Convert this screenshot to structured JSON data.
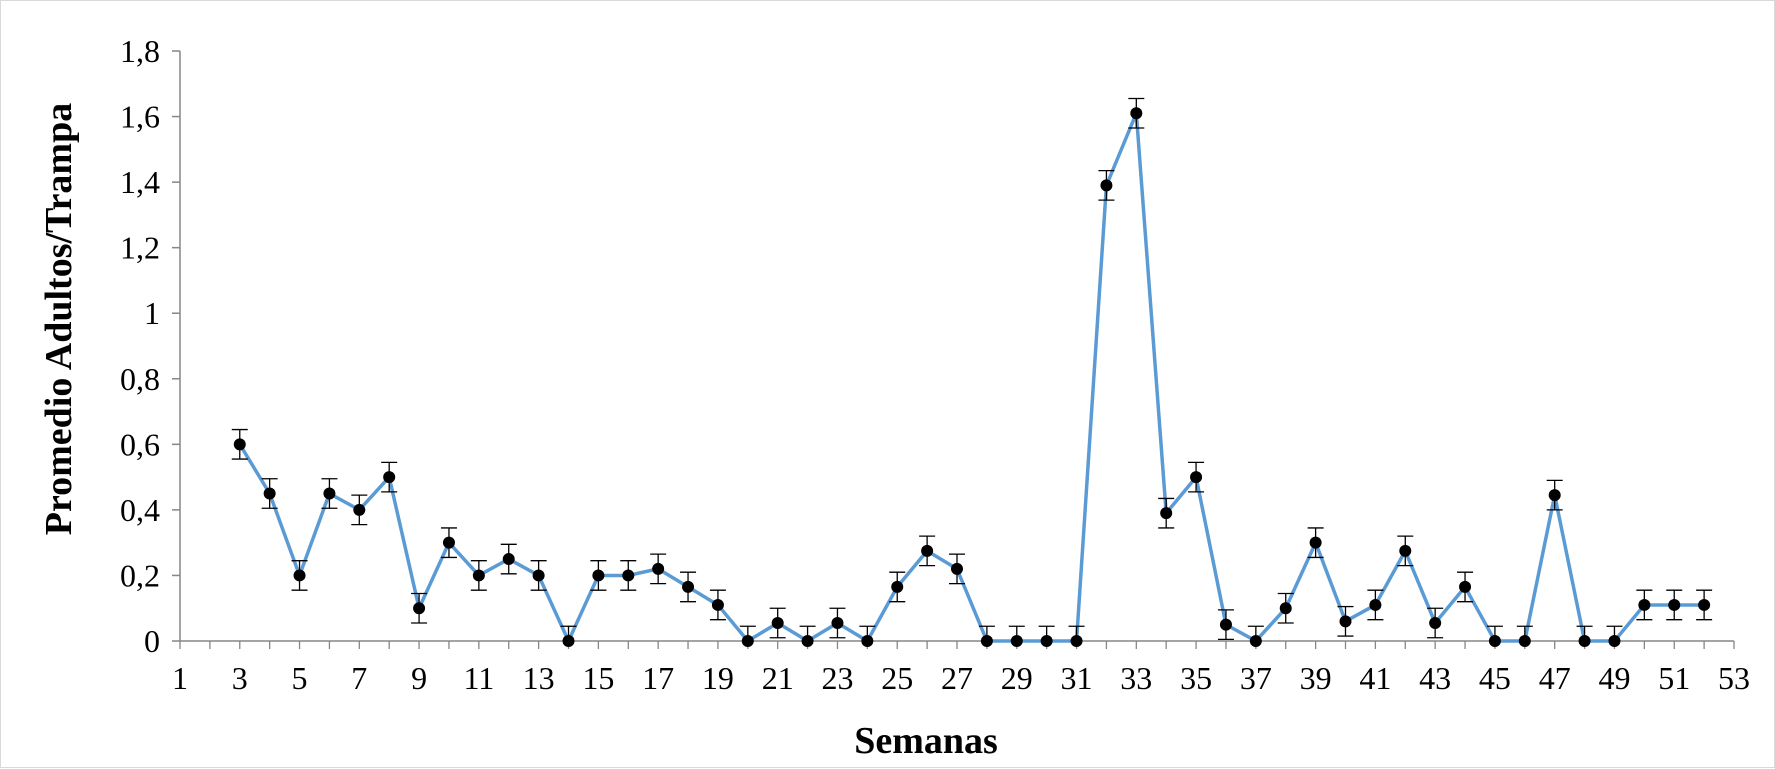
{
  "chart_data": {
    "type": "line",
    "title": "",
    "xlabel": "Semanas",
    "ylabel": "Promedio Adultos/Trampa",
    "xlim": [
      1,
      53
    ],
    "ylim": [
      0,
      1.8
    ],
    "x_ticks": [
      "1",
      "3",
      "5",
      "7",
      "9",
      "11",
      "13",
      "15",
      "17",
      "19",
      "21",
      "23",
      "25",
      "27",
      "29",
      "31",
      "33",
      "35",
      "37",
      "39",
      "41",
      "43",
      "45",
      "47",
      "49",
      "51",
      "53"
    ],
    "y_ticks": [
      "0",
      "0,2",
      "0,4",
      "0,6",
      "0,8",
      "1",
      "1,2",
      "1,4",
      "1,6",
      "1,8"
    ],
    "grid": false,
    "legend": "none",
    "series": [
      {
        "color": "#5b9bd5",
        "marker_color": "#000000",
        "error_bar": 0.045,
        "points": [
          {
            "x": 3,
            "y": 0.6
          },
          {
            "x": 4,
            "y": 0.45
          },
          {
            "x": 5,
            "y": 0.2
          },
          {
            "x": 6,
            "y": 0.45
          },
          {
            "x": 7,
            "y": 0.4
          },
          {
            "x": 8,
            "y": 0.5
          },
          {
            "x": 9,
            "y": 0.1
          },
          {
            "x": 10,
            "y": 0.3
          },
          {
            "x": 11,
            "y": 0.2
          },
          {
            "x": 12,
            "y": 0.25
          },
          {
            "x": 13,
            "y": 0.2
          },
          {
            "x": 14,
            "y": 0.0
          },
          {
            "x": 15,
            "y": 0.2
          },
          {
            "x": 16,
            "y": 0.2
          },
          {
            "x": 17,
            "y": 0.22
          },
          {
            "x": 18,
            "y": 0.165
          },
          {
            "x": 19,
            "y": 0.11
          },
          {
            "x": 20,
            "y": 0.0
          },
          {
            "x": 21,
            "y": 0.055
          },
          {
            "x": 22,
            "y": 0.0
          },
          {
            "x": 23,
            "y": 0.055
          },
          {
            "x": 24,
            "y": 0.0
          },
          {
            "x": 25,
            "y": 0.165
          },
          {
            "x": 26,
            "y": 0.275
          },
          {
            "x": 27,
            "y": 0.22
          },
          {
            "x": 28,
            "y": 0.0
          },
          {
            "x": 29,
            "y": 0.0
          },
          {
            "x": 30,
            "y": 0.0
          },
          {
            "x": 31,
            "y": 0.0
          },
          {
            "x": 32,
            "y": 1.39
          },
          {
            "x": 33,
            "y": 1.61
          },
          {
            "x": 34,
            "y": 0.39
          },
          {
            "x": 35,
            "y": 0.5
          },
          {
            "x": 36,
            "y": 0.05
          },
          {
            "x": 37,
            "y": 0.0
          },
          {
            "x": 38,
            "y": 0.1
          },
          {
            "x": 39,
            "y": 0.3
          },
          {
            "x": 40,
            "y": 0.06
          },
          {
            "x": 41,
            "y": 0.11
          },
          {
            "x": 42,
            "y": 0.275
          },
          {
            "x": 43,
            "y": 0.055
          },
          {
            "x": 44,
            "y": 0.165
          },
          {
            "x": 45,
            "y": 0.0
          },
          {
            "x": 46,
            "y": 0.0
          },
          {
            "x": 47,
            "y": 0.445
          },
          {
            "x": 48,
            "y": 0.0
          },
          {
            "x": 49,
            "y": 0.0
          },
          {
            "x": 50,
            "y": 0.11
          },
          {
            "x": 51,
            "y": 0.11
          },
          {
            "x": 52,
            "y": 0.11
          }
        ]
      }
    ]
  }
}
